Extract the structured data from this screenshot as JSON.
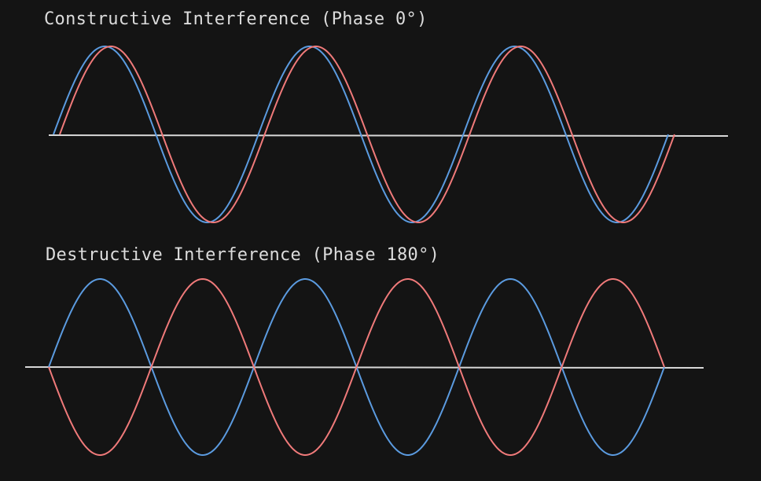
{
  "diagrams": {
    "constructive": {
      "title": "Constructive Interference (Phase 0°)",
      "phase_degrees": 0,
      "cycles": 3,
      "wave_colors": [
        "#5b9be0",
        "#f07a7a"
      ],
      "baseline_color": "#d8d8d8"
    },
    "destructive": {
      "title": "Destructive Interference (Phase 180°)",
      "phase_degrees": 180,
      "cycles": 3,
      "wave_colors": [
        "#5b9be0",
        "#f07a7a"
      ],
      "baseline_color": "#d8d8d8"
    }
  }
}
